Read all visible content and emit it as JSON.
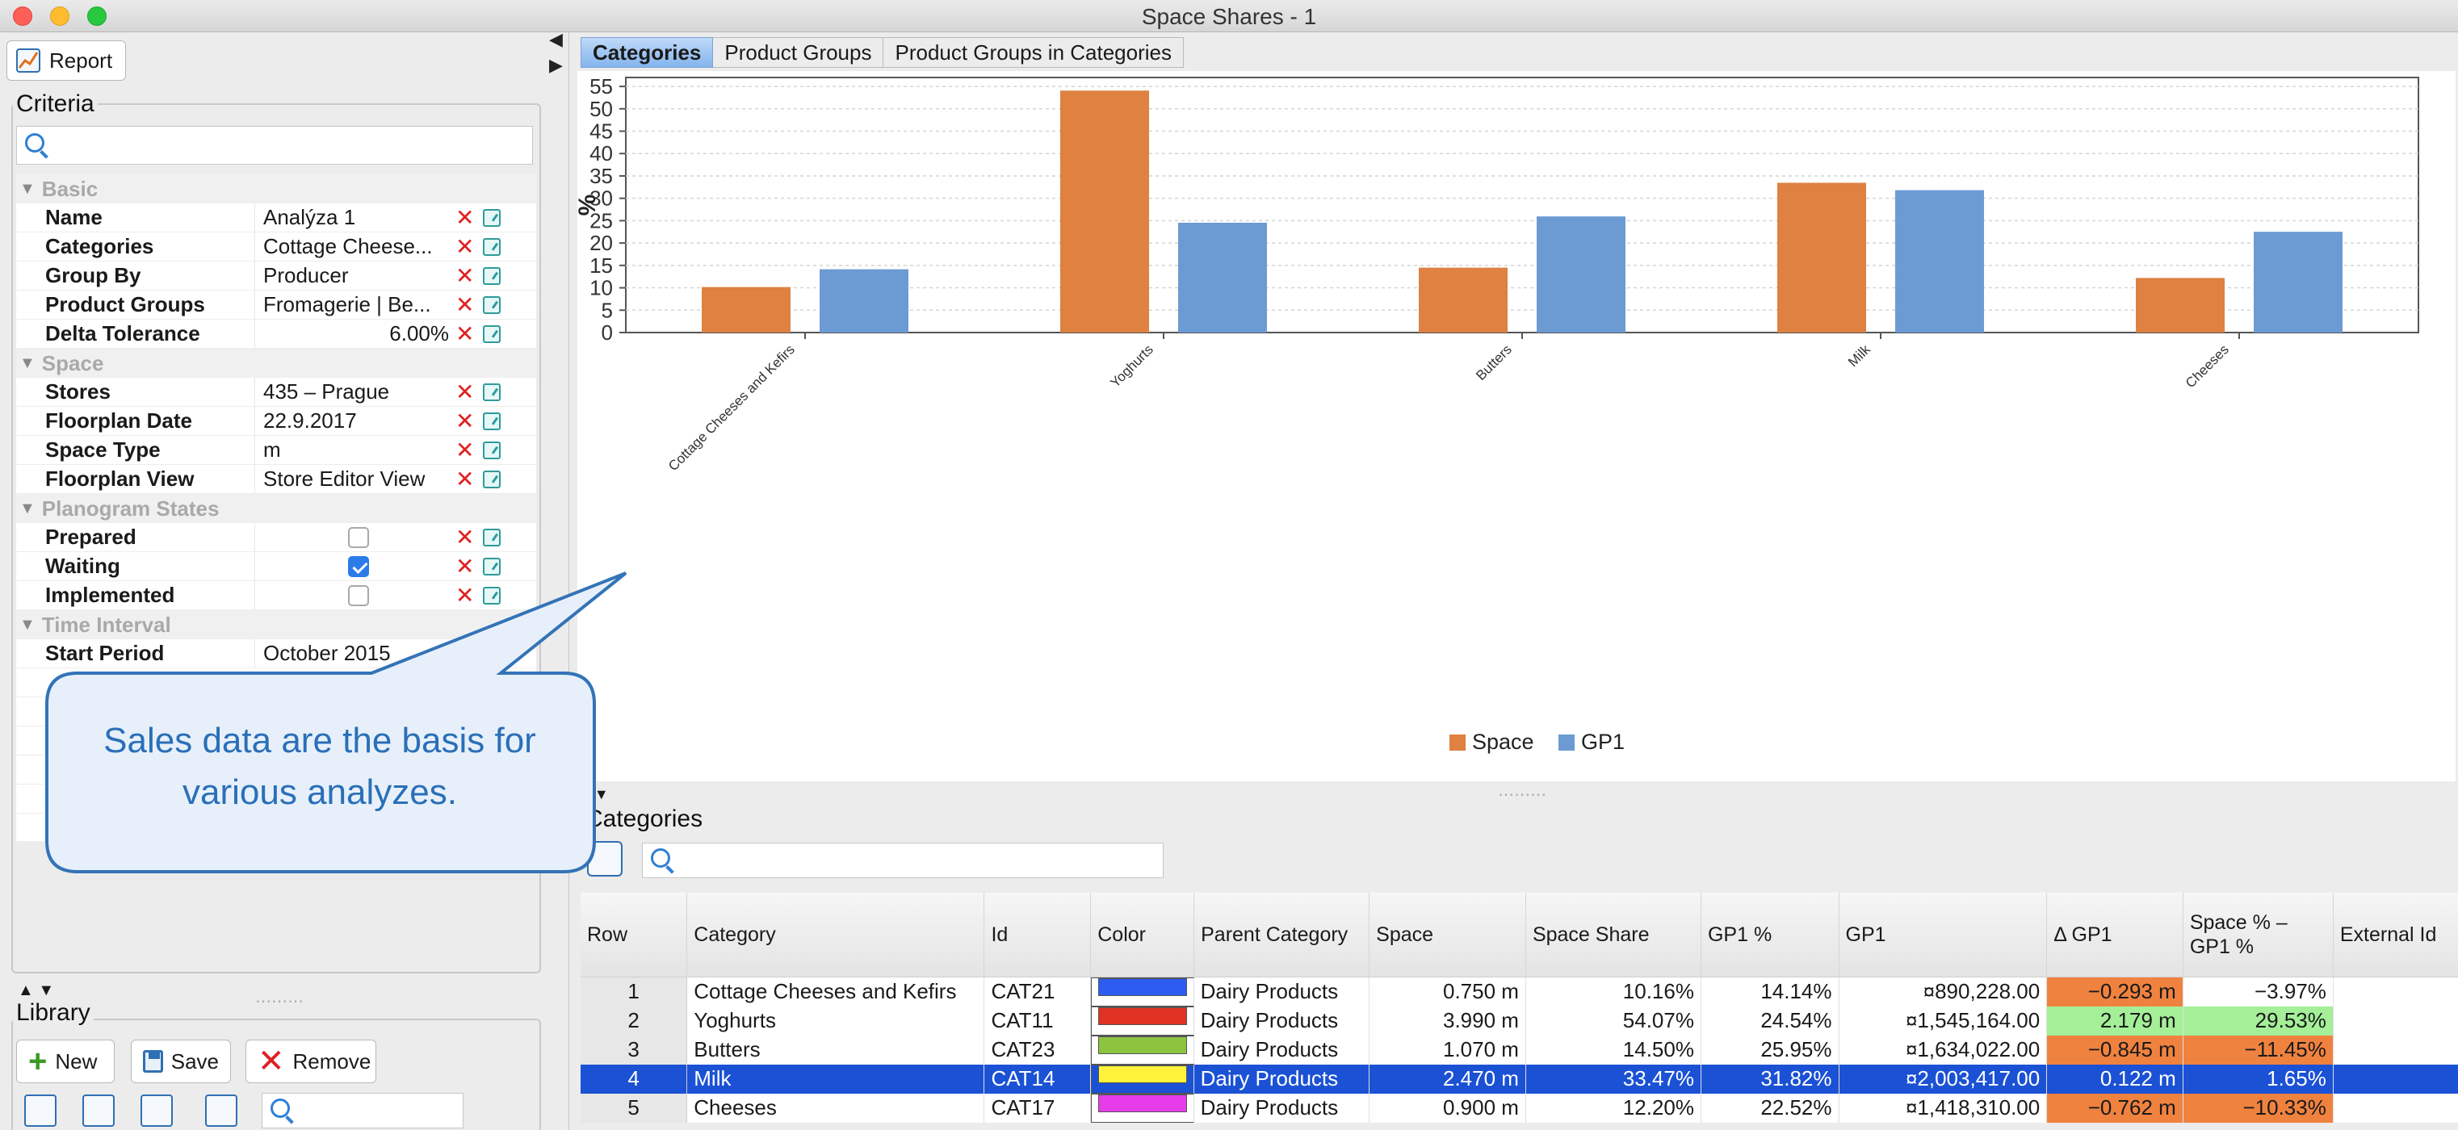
{
  "window": {
    "title": "Space Shares - 1"
  },
  "toolbar": {
    "report_label": "Report"
  },
  "criteria": {
    "title": "Criteria",
    "search_placeholder": "",
    "sections": [
      {
        "title": "Basic",
        "rows": [
          {
            "name": "Name",
            "value": "Analýza 1",
            "align": "left"
          },
          {
            "name": "Categories",
            "value": "Cottage Cheese...",
            "align": "left"
          },
          {
            "name": "Group By",
            "value": "Producer",
            "align": "left"
          },
          {
            "name": "Product Groups",
            "value": "Fromagerie | Be...",
            "align": "left"
          },
          {
            "name": "Delta Tolerance",
            "value": "6.00%",
            "align": "right"
          }
        ]
      },
      {
        "title": "Space",
        "rows": [
          {
            "name": "Stores",
            "value": "435 – Prague",
            "align": "left"
          },
          {
            "name": "Floorplan Date",
            "value": "22.9.2017",
            "align": "left"
          },
          {
            "name": "Space Type",
            "value": "m",
            "align": "left"
          },
          {
            "name": "Floorplan View",
            "value": "Store Editor View",
            "align": "left"
          }
        ]
      },
      {
        "title": "Planogram States",
        "rows": [
          {
            "name": "Prepared",
            "checked": false
          },
          {
            "name": "Waiting",
            "checked": true
          },
          {
            "name": "Implemented",
            "checked": false
          }
        ]
      },
      {
        "title": "Time Interval",
        "rows": [
          {
            "name": "Start Period",
            "value": "October 2015",
            "align": "left"
          }
        ]
      }
    ]
  },
  "library": {
    "title": "Library",
    "new_label": "New",
    "save_label": "Save",
    "remove_label": "Remove"
  },
  "tabs": [
    {
      "label": "Categories",
      "active": true
    },
    {
      "label": "Product Groups",
      "active": false
    },
    {
      "label": "Product Groups in Categories",
      "active": false
    }
  ],
  "chart_data": {
    "type": "bar",
    "categories": [
      "Cottage Cheeses and Kefirs",
      "Yoghurts",
      "Butters",
      "Milk",
      "Cheeses"
    ],
    "series": [
      {
        "name": "Space",
        "color": "#de8141",
        "values": [
          10.16,
          54.07,
          14.5,
          33.47,
          12.2
        ]
      },
      {
        "name": "GP1",
        "color": "#6c9bd4",
        "values": [
          14.14,
          24.54,
          25.95,
          31.82,
          22.52
        ]
      }
    ],
    "ylabel": "%",
    "ylim": [
      0,
      57
    ],
    "yticks": [
      0,
      5,
      10,
      15,
      20,
      25,
      30,
      35,
      40,
      45,
      50,
      55
    ],
    "grid": true,
    "legend": "bottom-center"
  },
  "categories_panel": {
    "title": "Categories",
    "search_placeholder": "",
    "columns": [
      "Row",
      "Category",
      "Id",
      "Color",
      "Parent Category",
      "Space",
      "Space Share",
      "GP1 %",
      "GP1",
      "Δ GP1",
      "Space % – GP1 %",
      "External Id"
    ],
    "rows": [
      {
        "row": "1",
        "category": "Cottage Cheeses and Kefirs",
        "id": "CAT21",
        "color": "#2d5df0",
        "parent": "Dairy Products",
        "space": "0.750 m",
        "space_share": "10.16%",
        "gp1_pct": "14.14%",
        "gp1": "¤890,228.00",
        "delta_gp1": "−0.293 m",
        "delta_state": "neg",
        "space_minus_gp1": "−3.97%",
        "diff_state": "none",
        "external_id": "",
        "selected": false
      },
      {
        "row": "2",
        "category": "Yoghurts",
        "id": "CAT11",
        "color": "#e03323",
        "parent": "Dairy Products",
        "space": "3.990 m",
        "space_share": "54.07%",
        "gp1_pct": "24.54%",
        "gp1": "¤1,545,164.00",
        "delta_gp1": "2.179 m",
        "delta_state": "pos",
        "space_minus_gp1": "29.53%",
        "diff_state": "pos",
        "external_id": "",
        "selected": false
      },
      {
        "row": "3",
        "category": "Butters",
        "id": "CAT23",
        "color": "#8cc43f",
        "parent": "Dairy Products",
        "space": "1.070 m",
        "space_share": "14.50%",
        "gp1_pct": "25.95%",
        "gp1": "¤1,634,022.00",
        "delta_gp1": "−0.845 m",
        "delta_state": "neg",
        "space_minus_gp1": "−11.45%",
        "diff_state": "neg",
        "external_id": "",
        "selected": false
      },
      {
        "row": "4",
        "category": "Milk",
        "id": "CAT14",
        "color": "#fff23a",
        "parent": "Dairy Products",
        "space": "2.470 m",
        "space_share": "33.47%",
        "gp1_pct": "31.82%",
        "gp1": "¤2,003,417.00",
        "delta_gp1": "0.122 m",
        "delta_state": "none",
        "space_minus_gp1": "1.65%",
        "diff_state": "none",
        "external_id": "",
        "selected": true
      },
      {
        "row": "5",
        "category": "Cheeses",
        "id": "CAT17",
        "color": "#e73ce9",
        "parent": "Dairy Products",
        "space": "0.900 m",
        "space_share": "12.20%",
        "gp1_pct": "22.52%",
        "gp1": "¤1,418,310.00",
        "delta_gp1": "−0.762 m",
        "delta_state": "neg",
        "space_minus_gp1": "−10.33%",
        "diff_state": "neg",
        "external_id": "",
        "selected": false
      }
    ]
  },
  "callout": {
    "text": "Sales data are the basis for various analyzes."
  }
}
